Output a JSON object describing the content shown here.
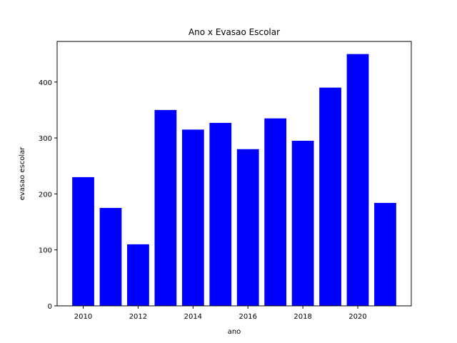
{
  "chart_data": {
    "type": "bar",
    "title": "Ano x Evasao Escolar",
    "xlabel": "ano",
    "ylabel": "evasao escolar",
    "x": [
      2010,
      2011,
      2012,
      2013,
      2014,
      2015,
      2016,
      2017,
      2018,
      2019,
      2020,
      2021
    ],
    "values": [
      230,
      175,
      110,
      350,
      315,
      327,
      280,
      335,
      295,
      390,
      450,
      184
    ],
    "xlim": [
      2009.05,
      2021.95
    ],
    "ylim": [
      0,
      472.5
    ],
    "xticks": [
      "2010",
      "2012",
      "2014",
      "2016",
      "2018",
      "2020"
    ],
    "yticks": [
      "0",
      "100",
      "200",
      "300",
      "400"
    ],
    "bar_color": "#0000ff",
    "grid": false,
    "legend": "none"
  }
}
